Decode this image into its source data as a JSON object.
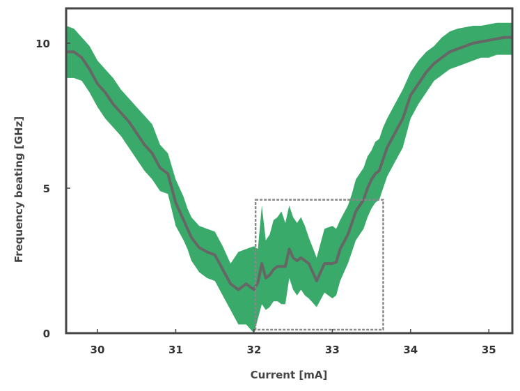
{
  "chart_data": {
    "type": "line",
    "title": "",
    "xlabel": "Current [mA]",
    "ylabel": "Frequency beating [GHz]",
    "xlim": [
      29.6,
      35.3
    ],
    "ylim": [
      0,
      11.2
    ],
    "xticks": [
      "30",
      "31",
      "32",
      "33",
      "34",
      "35"
    ],
    "yticks": [
      "0",
      "5",
      "10"
    ],
    "grid": false,
    "legend": "none",
    "colors": {
      "band": "#3aaa6a",
      "line": "#666666",
      "frame": "#444444",
      "highlight_box": "#888888"
    },
    "series": [
      {
        "x": [
          29.6,
          29.7,
          29.8,
          29.9,
          30.0,
          30.1,
          30.2,
          30.3,
          30.4,
          30.5,
          30.6,
          30.7,
          30.8,
          30.9,
          31.0,
          31.1,
          31.15,
          31.2,
          31.3,
          31.4,
          31.5,
          31.6,
          31.7,
          31.8,
          31.9,
          32.0,
          32.05,
          32.1,
          32.15,
          32.2,
          32.25,
          32.3,
          32.35,
          32.4,
          32.45,
          32.5,
          32.55,
          32.6,
          32.65,
          32.7,
          32.8,
          32.9,
          33.0,
          33.05,
          33.1,
          33.2,
          33.25,
          33.3,
          33.4,
          33.45,
          33.5,
          33.55,
          33.6,
          33.65,
          33.7,
          33.8,
          33.9,
          34.0,
          34.1,
          34.2,
          34.3,
          34.4,
          34.5,
          34.6,
          34.7,
          34.8,
          34.9,
          35.0,
          35.1,
          35.2,
          35.3
        ],
        "y": [
          9.7,
          9.7,
          9.5,
          9.1,
          8.6,
          8.3,
          7.9,
          7.6,
          7.3,
          6.9,
          6.5,
          6.2,
          5.7,
          5.5,
          4.5,
          3.9,
          3.6,
          3.3,
          2.95,
          2.8,
          2.7,
          2.2,
          1.7,
          1.5,
          1.7,
          1.5,
          1.75,
          2.4,
          1.9,
          2.0,
          2.2,
          2.3,
          2.3,
          2.3,
          2.9,
          2.6,
          2.5,
          2.6,
          2.5,
          2.4,
          1.8,
          2.4,
          2.4,
          2.45,
          2.9,
          3.4,
          3.8,
          4.2,
          4.6,
          5.0,
          5.3,
          5.5,
          5.6,
          6.0,
          6.4,
          6.9,
          7.4,
          8.2,
          8.6,
          9.0,
          9.3,
          9.5,
          9.7,
          9.8,
          9.9,
          10.0,
          10.05,
          10.1,
          10.15,
          10.2,
          10.2
        ],
        "band_upper": [
          10.6,
          10.5,
          10.2,
          9.9,
          9.4,
          9.1,
          8.8,
          8.4,
          8.1,
          7.8,
          7.5,
          7.2,
          6.5,
          6.2,
          5.3,
          4.7,
          4.3,
          4.0,
          3.7,
          3.6,
          3.5,
          3.0,
          2.4,
          2.8,
          2.9,
          3.0,
          2.9,
          4.4,
          3.2,
          3.4,
          3.9,
          4.0,
          4.2,
          3.8,
          4.4,
          4.0,
          3.8,
          4.0,
          3.7,
          3.3,
          2.6,
          3.6,
          3.7,
          3.6,
          3.9,
          4.4,
          4.8,
          5.3,
          5.7,
          6.1,
          6.3,
          6.6,
          6.7,
          7.1,
          7.4,
          7.9,
          8.4,
          9.0,
          9.4,
          9.7,
          9.9,
          10.2,
          10.4,
          10.5,
          10.55,
          10.6,
          10.6,
          10.65,
          10.7,
          10.7,
          10.7
        ],
        "band_lower": [
          8.8,
          8.8,
          8.7,
          8.3,
          7.8,
          7.4,
          7.1,
          6.8,
          6.4,
          6.0,
          5.6,
          5.3,
          4.9,
          4.8,
          3.7,
          3.2,
          2.9,
          2.5,
          2.1,
          1.9,
          1.8,
          1.3,
          0.8,
          0.3,
          0.3,
          0.0,
          0.5,
          1.0,
          0.8,
          0.9,
          1.1,
          1.1,
          1.0,
          1.0,
          1.9,
          1.5,
          1.3,
          1.5,
          1.3,
          1.2,
          0.9,
          1.4,
          1.2,
          1.3,
          1.8,
          2.4,
          2.8,
          3.2,
          3.6,
          4.0,
          4.3,
          4.5,
          4.6,
          5.0,
          5.4,
          5.9,
          6.4,
          7.4,
          7.9,
          8.3,
          8.7,
          8.9,
          9.1,
          9.2,
          9.3,
          9.4,
          9.5,
          9.5,
          9.6,
          9.6,
          9.6
        ]
      }
    ],
    "highlight_box": {
      "x_range": [
        32.02,
        33.65
      ],
      "y_range": [
        0.12,
        4.6
      ]
    }
  }
}
